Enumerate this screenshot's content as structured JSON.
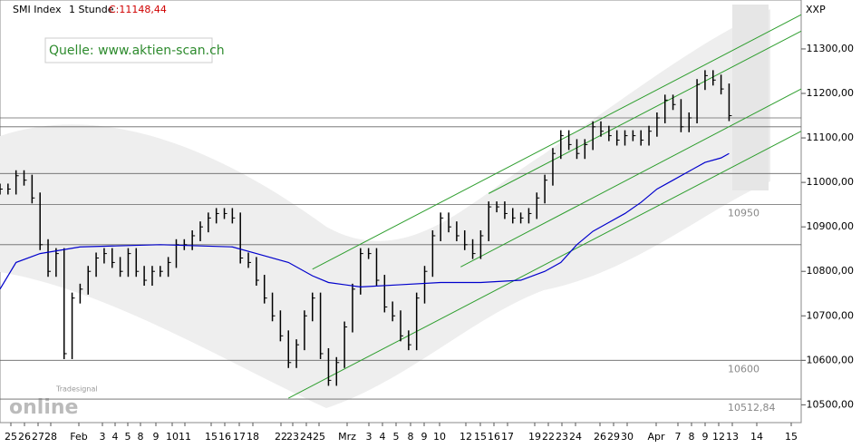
{
  "chart_data": {
    "type": "price",
    "title": "SMI Index",
    "interval": "1 Stunde",
    "last_close": "C:11148,44",
    "currency": "XXP",
    "source": "Quelle: www.aktien-scan.ch",
    "logo_small": "Tradesignal",
    "logo_big": "online",
    "xlim": [
      0,
      100
    ],
    "ylim": [
      10460,
      11410
    ],
    "yticks": [
      {
        "value": 10500,
        "label": "10500,00"
      },
      {
        "value": 10600,
        "label": "10600,00"
      },
      {
        "value": 10700,
        "label": "10700,00"
      },
      {
        "value": 10800,
        "label": "10800,00"
      },
      {
        "value": 10900,
        "label": "10900,00"
      },
      {
        "value": 11000,
        "label": "11000,00"
      },
      {
        "value": 11100,
        "label": "11100,00"
      },
      {
        "value": 11200,
        "label": "11200,00"
      },
      {
        "value": 11300,
        "label": "11300,00"
      }
    ],
    "x_tick_labels": [
      "25",
      "26",
      "27",
      "28",
      "Feb",
      "3",
      "4",
      "5",
      "8",
      "9",
      "10",
      "11",
      "15",
      "16",
      "17",
      "18",
      "22",
      "23",
      "24",
      "25",
      "Mrz",
      "3",
      "4",
      "5",
      "8",
      "9",
      "10",
      "12",
      "15",
      "16",
      "17",
      "19",
      "22",
      "23",
      "24",
      "26",
      "29",
      "30",
      "Apr",
      "7",
      "8",
      "9",
      "12",
      "13",
      "14",
      "15"
    ],
    "series": [
      {
        "name": "SMI",
        "color": "#000000",
        "values": [
          10985,
          10985,
          11015,
          11005,
          10965,
          10860,
          10800,
          10840,
          10615,
          10740,
          10760,
          10800,
          10830,
          10840,
          10820,
          10800,
          10840,
          10800,
          10780,
          10800,
          10800,
          10820,
          10860,
          10860,
          10880,
          10900,
          10920,
          10930,
          10930,
          10920,
          10830,
          10820,
          10780,
          10740,
          10700,
          10655,
          10595,
          10635,
          10700,
          10740,
          10615,
          10555,
          10595,
          10675,
          10760,
          10840,
          10840,
          10780,
          10720,
          10700,
          10655,
          10635,
          10740,
          10800,
          10880,
          10920,
          10900,
          10880,
          10860,
          10840,
          10880,
          10945,
          10945,
          10930,
          10920,
          10920,
          10930,
          10965,
          11005,
          11065,
          11105,
          11085,
          11065,
          11085,
          11125,
          11115,
          11105,
          11095,
          11105,
          11105,
          11095,
          11115,
          11145,
          11185,
          11175,
          11125,
          11145,
          11220,
          11240,
          11230,
          11210,
          11150
        ]
      },
      {
        "name": "MA",
        "color": "#0000cc",
        "x": [
          0,
          2,
          5,
          10,
          20,
          29,
          32,
          36,
          39,
          41,
          45,
          50,
          55,
          60,
          65,
          68,
          70,
          72,
          74,
          76,
          78,
          80,
          82,
          84,
          86,
          88,
          90,
          91
        ],
        "values": [
          10760,
          10820,
          10840,
          10855,
          10860,
          10855,
          10840,
          10820,
          10790,
          10775,
          10765,
          10770,
          10775,
          10775,
          10780,
          10800,
          10820,
          10860,
          10890,
          10910,
          10930,
          10955,
          10985,
          11005,
          11025,
          11045,
          11055,
          11065
        ]
      }
    ],
    "trendlines": [
      {
        "color": "#2e9e2e",
        "x": [
          36,
          100
        ],
        "values": [
          10515,
          11115
        ]
      },
      {
        "color": "#2e9e2e",
        "x": [
          39,
          100
        ],
        "values": [
          10805,
          11377
        ]
      },
      {
        "color": "#2e9e2e",
        "x": [
          57.5,
          100
        ],
        "values": [
          10810,
          11210
        ]
      },
      {
        "color": "#2e9e2e",
        "x": [
          61,
          100
        ],
        "values": [
          10975,
          11340
        ]
      }
    ],
    "levels": [
      {
        "value": 11145
      },
      {
        "value": 11125
      },
      {
        "value": 11020
      },
      {
        "value": 10950,
        "label": "10950"
      },
      {
        "value": 10860
      },
      {
        "value": 10600,
        "label": "10600"
      },
      {
        "value": 10512.84,
        "label": "10512,84"
      }
    ]
  }
}
